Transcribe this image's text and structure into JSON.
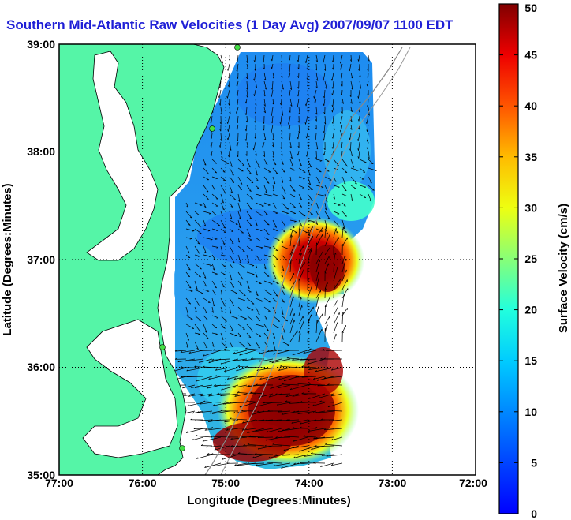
{
  "title": "Southern Mid-Atlantic Raw Velocities (1 Day Avg) 2007/09/07 1100 EDT",
  "colors": {
    "land": "#55f5a7",
    "background": "#ffffff",
    "title": "#1f1fd6",
    "grid": "#000000"
  },
  "chart_data": {
    "type": "map",
    "xlabel": "Longitude (Degrees:Minutes)",
    "ylabel": "Latitude (Degrees:Minutes)",
    "x_ticks": [
      "77:00",
      "76:00",
      "75:00",
      "74:00",
      "73:00",
      "72:00"
    ],
    "y_ticks": [
      "39:00",
      "38:00",
      "37:00",
      "36:00",
      "35:00"
    ],
    "xlim": [
      -77,
      -72
    ],
    "ylim": [
      35,
      39
    ],
    "grid": true,
    "colorbar": {
      "label": "Surface Velocity (cm/s)",
      "range": [
        0,
        50
      ],
      "ticks": [
        "0",
        "5",
        "10",
        "15",
        "20",
        "25",
        "30",
        "35",
        "40",
        "45",
        "50"
      ],
      "colormap": "jet"
    },
    "velocity_regions": [
      {
        "description": "northern offshore",
        "approx_speed_cms": 8
      },
      {
        "description": "central shelf",
        "approx_speed_cms": 10
      },
      {
        "description": "offshore near 37N 73.6W",
        "approx_speed_cms": 50
      },
      {
        "description": "southern shelf near 35.5N 74W",
        "approx_speed_cms": 50
      }
    ]
  }
}
